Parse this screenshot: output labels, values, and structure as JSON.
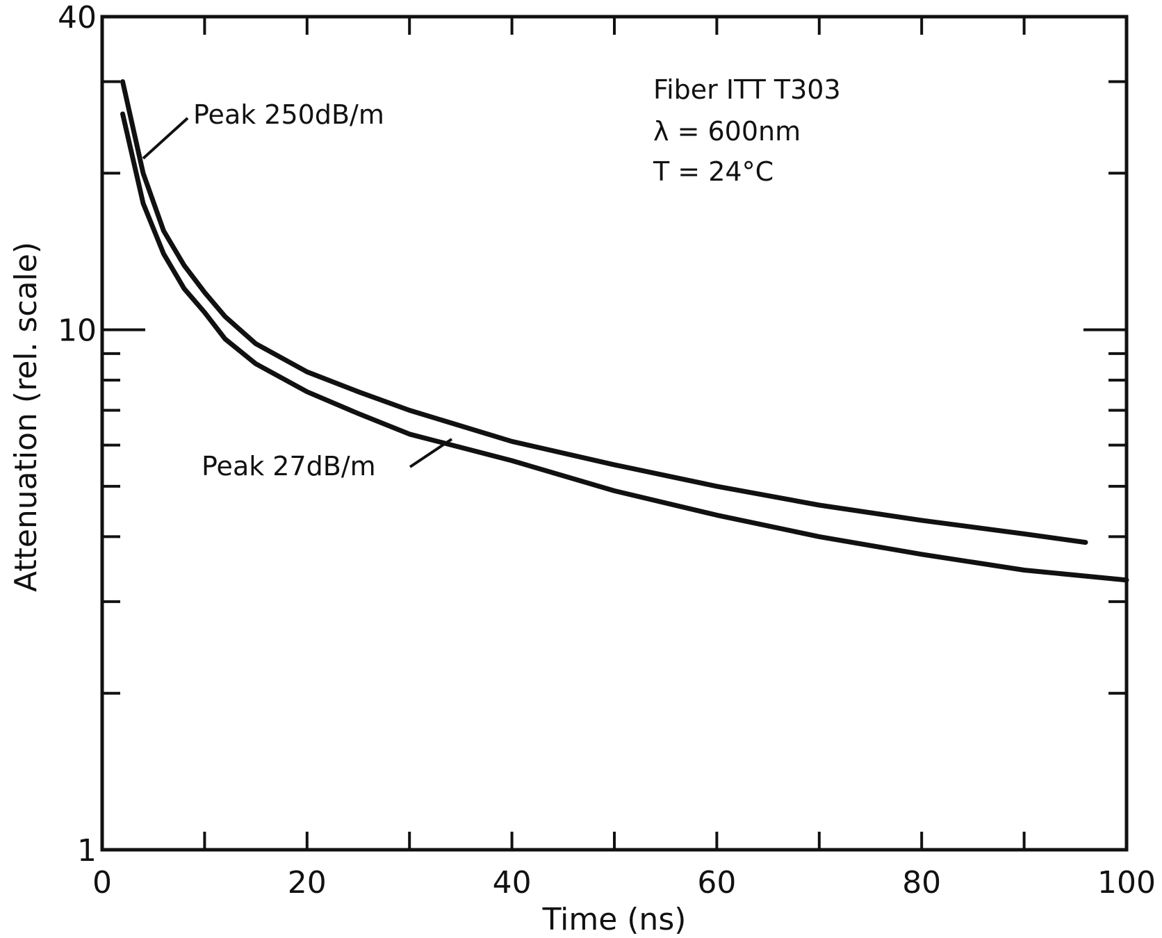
{
  "chart_data": {
    "type": "line",
    "xlabel": "Time (ns)",
    "ylabel": "Attenuation (rel. scale)",
    "xlim": [
      0,
      100
    ],
    "ylim": [
      1,
      40
    ],
    "yscale": "log",
    "grid": false,
    "x_ticks": [
      "0",
      "20",
      "40",
      "60",
      "80",
      "100"
    ],
    "y_ticks": [
      "1",
      "10",
      "40"
    ],
    "annotation_lines": [
      "Fiber ITT T303",
      "λ = 600nm",
      "T = 24°C"
    ],
    "series": [
      {
        "name": "Peak 250dB/m",
        "x": [
          2,
          4,
          6,
          8,
          10,
          12,
          15,
          20,
          25,
          30,
          40,
          50,
          60,
          70,
          80,
          90,
          96
        ],
        "y": [
          30,
          20,
          15.5,
          13.3,
          11.8,
          10.6,
          9.4,
          8.3,
          7.6,
          7.0,
          6.1,
          5.5,
          5.0,
          4.6,
          4.3,
          4.05,
          3.9
        ]
      },
      {
        "name": "Peak 27dB/m",
        "x": [
          2,
          4,
          6,
          8,
          10,
          12,
          15,
          20,
          25,
          30,
          40,
          50,
          60,
          70,
          80,
          90,
          100
        ],
        "y": [
          26,
          17.5,
          14,
          12,
          10.8,
          9.6,
          8.6,
          7.6,
          6.9,
          6.3,
          5.6,
          4.9,
          4.4,
          4.0,
          3.7,
          3.45,
          3.3
        ]
      }
    ],
    "series_labels": [
      {
        "text": "Peak 250dB/m",
        "series": 0
      },
      {
        "text": "Peak 27dB/m",
        "series": 1
      }
    ]
  }
}
